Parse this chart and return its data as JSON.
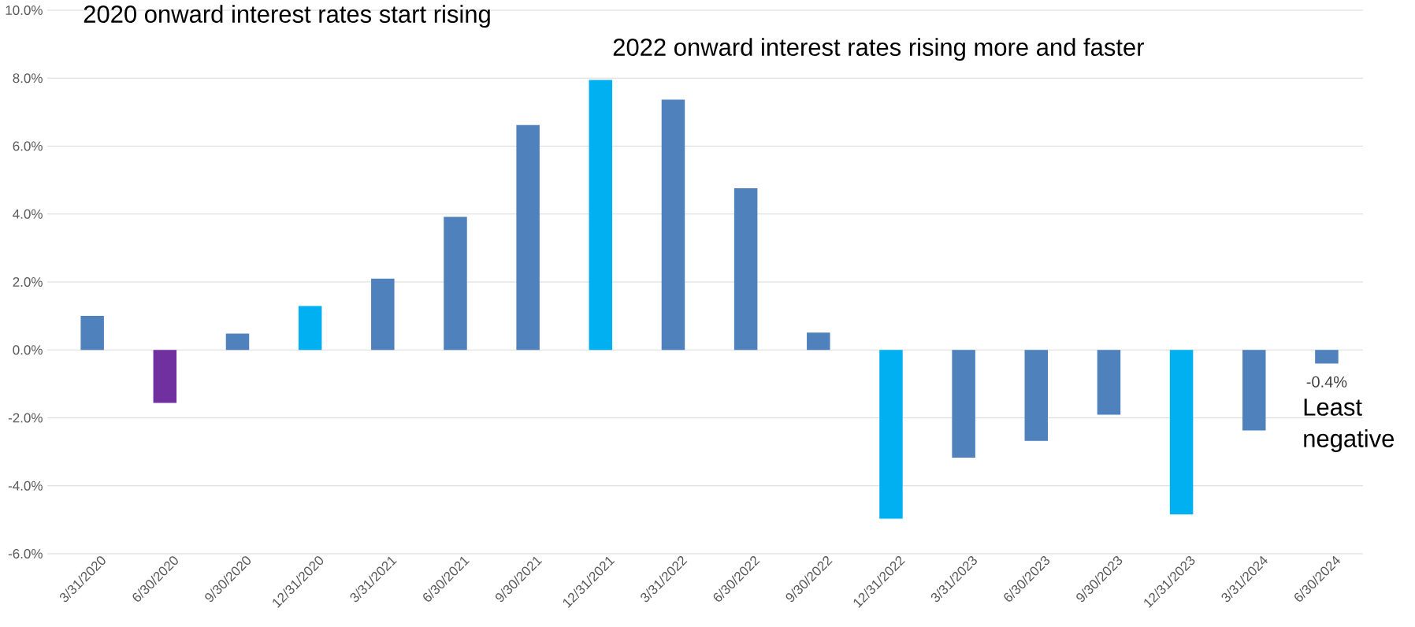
{
  "chart_data": {
    "type": "bar",
    "categories": [
      "3/31/2020",
      "6/30/2020",
      "9/30/2020",
      "12/31/2020",
      "3/31/2021",
      "6/30/2021",
      "9/30/2021",
      "12/31/2021",
      "3/31/2022",
      "6/30/2022",
      "9/30/2022",
      "12/31/2022",
      "3/31/2023",
      "6/30/2023",
      "9/30/2023",
      "12/31/2023",
      "3/31/2024",
      "6/30/2024"
    ],
    "values": [
      1.0,
      -1.56,
      0.48,
      1.29,
      2.1,
      3.92,
      6.62,
      7.95,
      7.37,
      4.76,
      0.51,
      -4.97,
      -3.17,
      -2.68,
      -1.91,
      -4.84,
      -2.37,
      -0.4
    ],
    "colors": [
      "#4f81bd",
      "#7030a0",
      "#4f81bd",
      "#00b0f0",
      "#4f81bd",
      "#4f81bd",
      "#4f81bd",
      "#00b0f0",
      "#4f81bd",
      "#4f81bd",
      "#4f81bd",
      "#00b0f0",
      "#4f81bd",
      "#4f81bd",
      "#4f81bd",
      "#00b0f0",
      "#4f81bd",
      "#4f81bd"
    ],
    "value_labels": [
      null,
      null,
      null,
      null,
      null,
      null,
      null,
      null,
      null,
      null,
      null,
      null,
      null,
      null,
      null,
      null,
      null,
      "-0.4%"
    ],
    "ylim": [
      -6,
      10
    ],
    "yticks": [
      {
        "value": -6,
        "label": "-6.0%"
      },
      {
        "value": -4,
        "label": "-4.0%"
      },
      {
        "value": -2,
        "label": "-2.0%"
      },
      {
        "value": 0,
        "label": "0.0%"
      },
      {
        "value": 2,
        "label": "2.0%"
      },
      {
        "value": 4,
        "label": "4.0%"
      },
      {
        "value": 6,
        "label": "6.0%"
      },
      {
        "value": 8,
        "label": "8.0%"
      },
      {
        "value": 10,
        "label": "10.0%"
      }
    ],
    "grid": "y",
    "annotations": [
      "2020 onward interest rates start rising",
      "2022 onward interest rates rising more and faster",
      "Least negative"
    ]
  }
}
